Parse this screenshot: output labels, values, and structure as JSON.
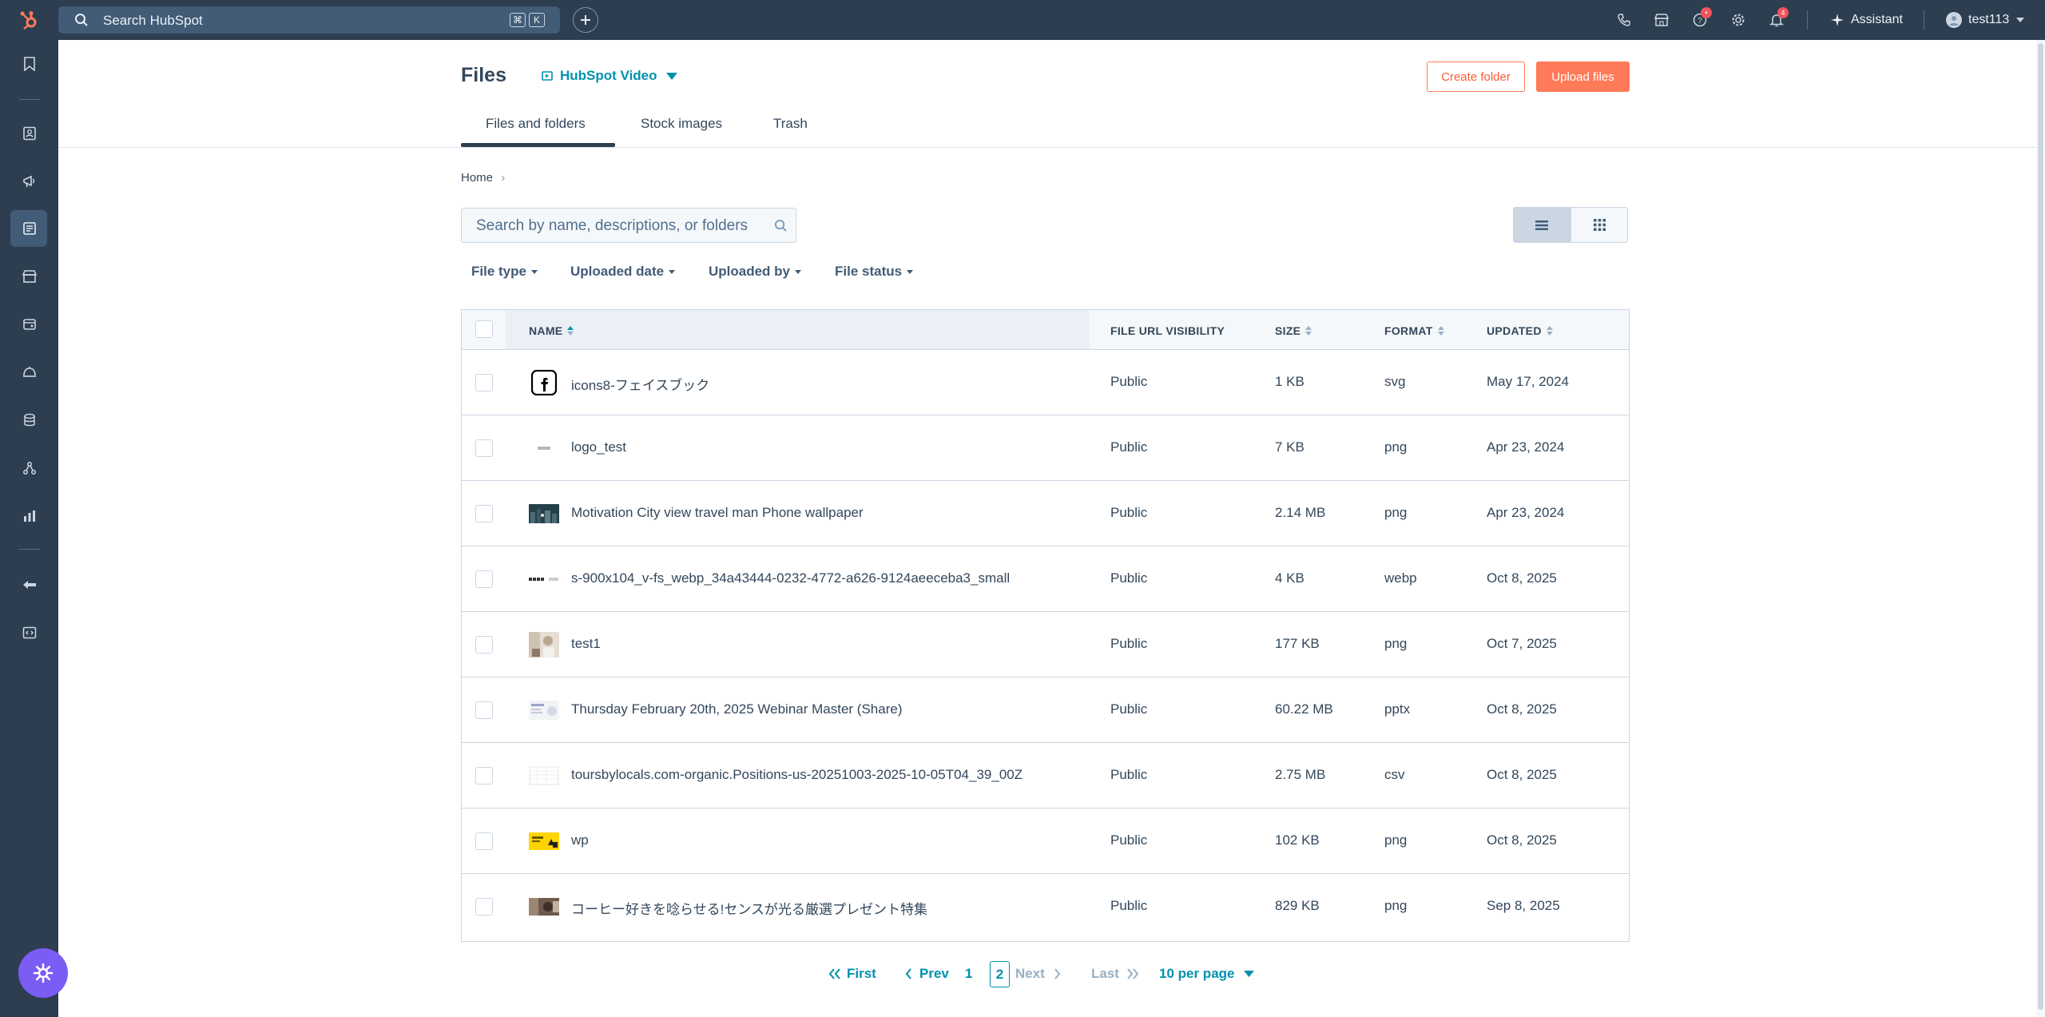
{
  "topbar": {
    "search_placeholder": "Search HubSpot",
    "shortcut_keys": [
      "⌘",
      "K"
    ],
    "help_badge": "•",
    "notifications_count": "4",
    "assistant_label": "Assistant",
    "user_name": "test113",
    "icons": [
      "hubspot-logo-icon",
      "search-icon",
      "plus-icon",
      "phone-icon",
      "marketplace-icon",
      "help-icon",
      "gear-icon",
      "bell-icon",
      "sparkle-icon",
      "avatar",
      "chevron-down-icon"
    ]
  },
  "sidebar": {
    "icons": [
      "bookmark-icon",
      "contacts-icon",
      "megaphone-icon",
      "content-icon",
      "commerce-icon",
      "sales-icon",
      "service-icon",
      "data-icon",
      "automation-icon",
      "reports-icon",
      "breeze-icon",
      "dev-icon"
    ],
    "active_icon": "content-icon"
  },
  "header": {
    "title": "Files",
    "video_dropdown": "HubSpot Video",
    "create_folder": "Create folder",
    "upload_files": "Upload files"
  },
  "tabs": [
    {
      "label": "Files and folders",
      "active": true
    },
    {
      "label": "Stock images",
      "active": false
    },
    {
      "label": "Trash",
      "active": false
    }
  ],
  "breadcrumb": {
    "home": "Home",
    "separator": "›"
  },
  "files_search": {
    "placeholder": "Search by name, descriptions, or folders"
  },
  "view_toggle": {
    "active": "list-view",
    "options": [
      "list-view-icon",
      "grid-view-icon"
    ]
  },
  "filters": [
    "File type",
    "Uploaded date",
    "Uploaded by",
    "File status"
  ],
  "table": {
    "columns": [
      "NAME",
      "FILE URL VISIBILITY",
      "SIZE",
      "FORMAT",
      "UPDATED"
    ],
    "sorted_column": "NAME",
    "rows": [
      {
        "name": "icons8-フェイスブック",
        "visibility": "Public",
        "size": "1 KB",
        "format": "svg",
        "updated": "May 17, 2024"
      },
      {
        "name": "logo_test",
        "visibility": "Public",
        "size": "7 KB",
        "format": "png",
        "updated": "Apr 23, 2024"
      },
      {
        "name": "Motivation City view travel man Phone wallpaper",
        "visibility": "Public",
        "size": "2.14 MB",
        "format": "png",
        "updated": "Apr 23, 2024"
      },
      {
        "name": "s-900x104_v-fs_webp_34a43444-0232-4772-a626-9124aeeceba3_small",
        "visibility": "Public",
        "size": "4 KB",
        "format": "webp",
        "updated": "Oct 8, 2025"
      },
      {
        "name": "test1",
        "visibility": "Public",
        "size": "177 KB",
        "format": "png",
        "updated": "Oct 7, 2025"
      },
      {
        "name": "Thursday February 20th, 2025 Webinar Master (Share)",
        "visibility": "Public",
        "size": "60.22 MB",
        "format": "pptx",
        "updated": "Oct 8, 2025"
      },
      {
        "name": "toursbylocals.com-organic.Positions-us-20251003-2025-10-05T04_39_00Z",
        "visibility": "Public",
        "size": "2.75 MB",
        "format": "csv",
        "updated": "Oct 8, 2025"
      },
      {
        "name": "wp",
        "visibility": "Public",
        "size": "102 KB",
        "format": "png",
        "updated": "Oct 8, 2025"
      },
      {
        "name": "コーヒー好きを唸らせる!センスが光る厳選プレゼント特集",
        "visibility": "Public",
        "size": "829 KB",
        "format": "png",
        "updated": "Sep 8, 2025"
      }
    ]
  },
  "pagination": {
    "first": "First",
    "prev": "Prev",
    "pages": [
      "1",
      "2"
    ],
    "current": "2",
    "next": "Next",
    "last": "Last",
    "per_page": "10 per page"
  },
  "colors": {
    "nav_bg": "#2d3e50",
    "accent_orange": "#ff7a59",
    "link_teal": "#0091ae",
    "help_fab": "#7b5cf5"
  }
}
